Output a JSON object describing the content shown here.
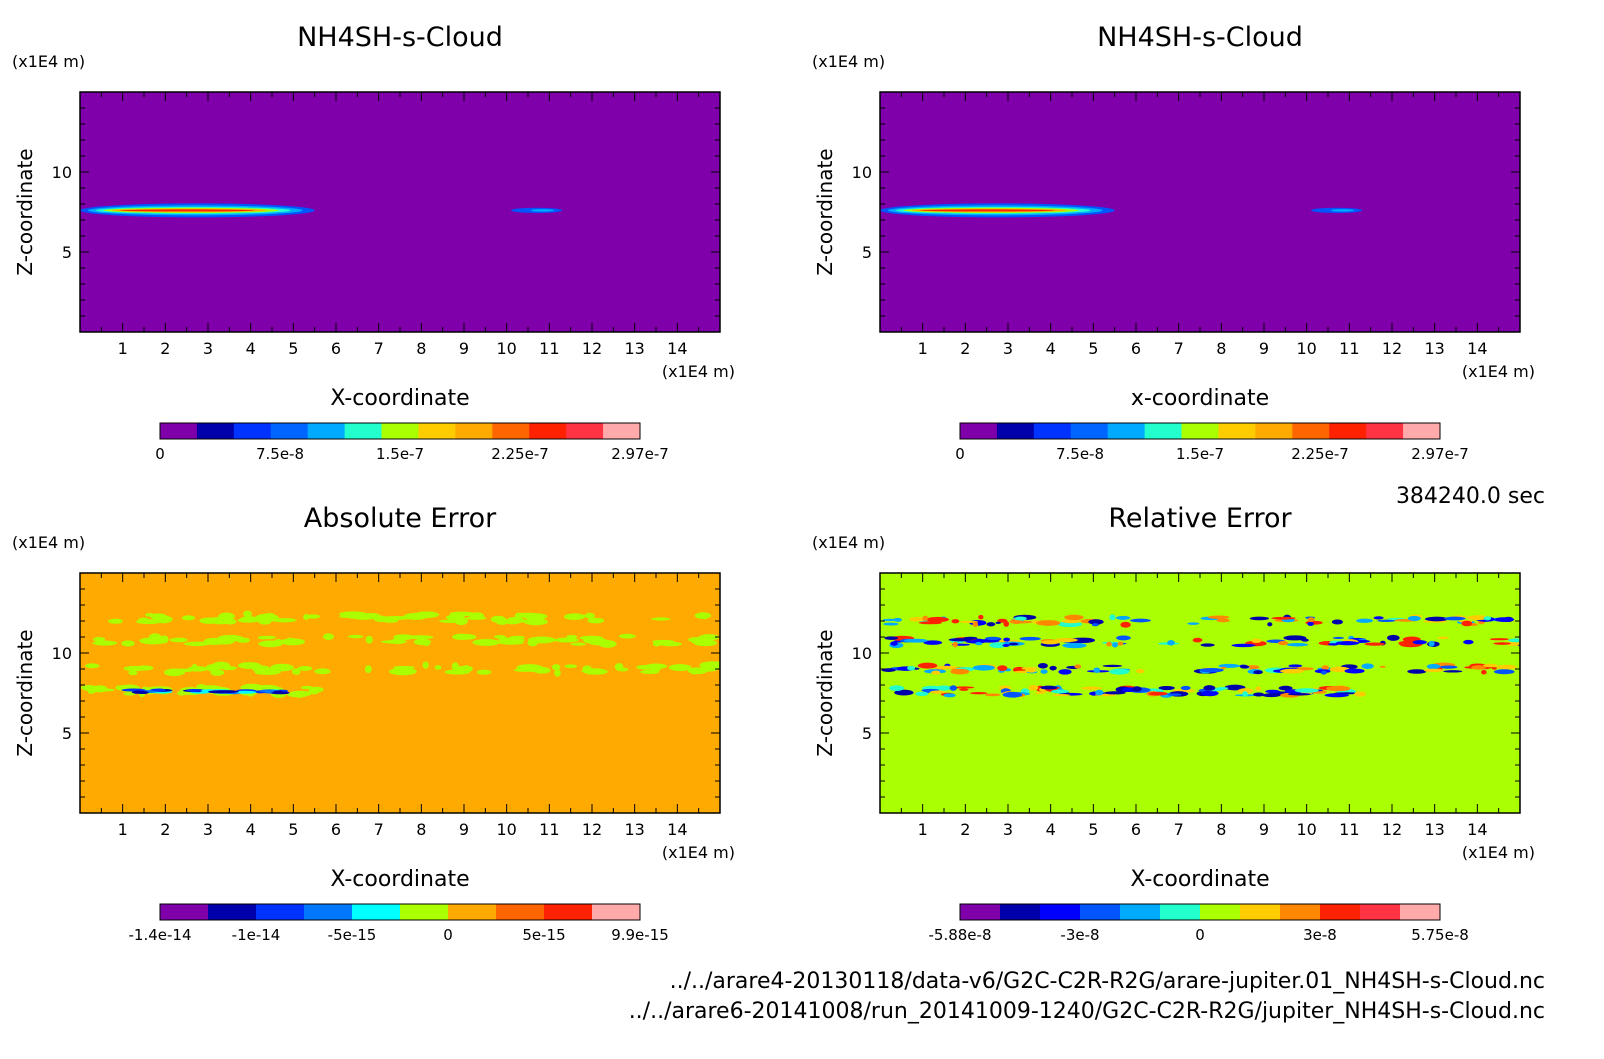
{
  "timestamp": "384240.0 sec",
  "files": [
    "../../arare4-20130118/data-v6/G2C-C2R-R2G/arare-jupiter.01_NH4SH-s-Cloud.nc",
    "../../arare6-20141008/run_20141009-1240/G2C-C2R-R2G/jupiter_NH4SH-s-Cloud.nc"
  ],
  "chart_data": [
    {
      "type": "heatmap",
      "title": "NH4SH-s-Cloud",
      "xlabel": "X-coordinate",
      "ylabel": "Z-coordinate",
      "x_unit": "(x1E4 m)",
      "y_unit": "(x1E4 m)",
      "xlim": [
        0,
        15
      ],
      "ylim": [
        0,
        15
      ],
      "x_ticks": [
        1,
        2,
        3,
        4,
        5,
        6,
        7,
        8,
        9,
        10,
        11,
        12,
        13,
        14
      ],
      "y_ticks": [
        5,
        10
      ],
      "background": "#7f00aa",
      "features": [
        {
          "x": [
            0,
            5.5
          ],
          "z": 7.6,
          "peak": 2.97e-07
        },
        {
          "x": [
            10.1,
            11.3
          ],
          "z": 7.6,
          "peak": 7.5e-08
        }
      ],
      "colorbar": {
        "colors": [
          "#7f00aa",
          "#0000aa",
          "#0033ff",
          "#0066ff",
          "#00aaff",
          "#22ffcc",
          "#aaff00",
          "#ffcc00",
          "#ffaa00",
          "#ff6600",
          "#ff2200",
          "#ff3344",
          "#ffaaaa"
        ],
        "labels": [
          "0",
          "7.5e-8",
          "1.5e-7",
          "2.25e-7",
          "2.97e-7"
        ]
      },
      "grid": false
    },
    {
      "type": "heatmap",
      "title": "NH4SH-s-Cloud",
      "xlabel": "x-coordinate",
      "ylabel": "Z-coordinate",
      "x_unit": "(x1E4 m)",
      "y_unit": "(x1E4 m)",
      "xlim": [
        0,
        15
      ],
      "ylim": [
        0,
        15
      ],
      "x_ticks": [
        1,
        2,
        3,
        4,
        5,
        6,
        7,
        8,
        9,
        10,
        11,
        12,
        13,
        14
      ],
      "y_ticks": [
        5,
        10
      ],
      "background": "#7f00aa",
      "features": [
        {
          "x": [
            0,
            5.5
          ],
          "z": 7.6,
          "peak": 2.97e-07
        },
        {
          "x": [
            10.1,
            11.3
          ],
          "z": 7.6,
          "peak": 7.5e-08
        }
      ],
      "colorbar": {
        "colors": [
          "#7f00aa",
          "#0000aa",
          "#0033ff",
          "#0066ff",
          "#00aaff",
          "#22ffcc",
          "#aaff00",
          "#ffcc00",
          "#ffaa00",
          "#ff6600",
          "#ff2200",
          "#ff3344",
          "#ffaaaa"
        ],
        "labels": [
          "0",
          "7.5e-8",
          "1.5e-7",
          "2.25e-7",
          "2.97e-7"
        ]
      },
      "grid": false
    },
    {
      "type": "heatmap",
      "title": "Absolute Error",
      "xlabel": "X-coordinate",
      "ylabel": "Z-coordinate",
      "x_unit": "(x1E4 m)",
      "y_unit": "(x1E4 m)",
      "xlim": [
        0,
        15
      ],
      "ylim": [
        0,
        15
      ],
      "x_ticks": [
        1,
        2,
        3,
        4,
        5,
        6,
        7,
        8,
        9,
        10,
        11,
        12,
        13,
        14
      ],
      "y_ticks": [
        5,
        10
      ],
      "background": "#ffaa00",
      "features": [
        {
          "x": [
            0.2,
            15
          ],
          "z": 12.2,
          "value": -1e-15
        },
        {
          "x": [
            0.2,
            15
          ],
          "z": 10.8,
          "value": -1e-15
        },
        {
          "x": [
            0.2,
            15
          ],
          "z": 9.0,
          "value": -1e-15
        },
        {
          "x": [
            0.2,
            5.8
          ],
          "z": 7.6,
          "value": -1.4e-14
        }
      ],
      "colorbar": {
        "colors": [
          "#7f00aa",
          "#0000aa",
          "#0033ff",
          "#0077ff",
          "#00ffff",
          "#aaff00",
          "#ffaa00",
          "#ff6600",
          "#ff2200",
          "#ffaaaa"
        ],
        "labels": [
          "-1.4e-14",
          "-1e-14",
          "-5e-15",
          "0",
          "5e-15",
          "9.9e-15"
        ]
      },
      "grid": false
    },
    {
      "type": "heatmap",
      "title": "Relative Error",
      "xlabel": "X-coordinate",
      "ylabel": "Z-coordinate",
      "x_unit": "(x1E4 m)",
      "y_unit": "(x1E4 m)",
      "xlim": [
        0,
        15
      ],
      "ylim": [
        0,
        15
      ],
      "x_ticks": [
        1,
        2,
        3,
        4,
        5,
        6,
        7,
        8,
        9,
        10,
        11,
        12,
        13,
        14
      ],
      "y_ticks": [
        5,
        10
      ],
      "background": "#aaff00",
      "features": [
        {
          "x": [
            0.2,
            15
          ],
          "z": 12.0,
          "value": -3e-08
        },
        {
          "x": [
            0.2,
            15
          ],
          "z": 10.7,
          "value": -3e-08
        },
        {
          "x": [
            0.2,
            15
          ],
          "z": 9.0,
          "value": -3e-08
        },
        {
          "x": [
            0.2,
            11.3
          ],
          "z": 7.6,
          "value": -5.88e-08
        }
      ],
      "colorbar": {
        "colors": [
          "#7f00aa",
          "#0000aa",
          "#0000ff",
          "#0055ff",
          "#00aaff",
          "#22ffcc",
          "#aaff00",
          "#ffcc00",
          "#ff8800",
          "#ff2200",
          "#ff3344",
          "#ffaaaa"
        ],
        "labels": [
          "-5.88e-8",
          "-3e-8",
          "0",
          "3e-8",
          "5.75e-8"
        ]
      },
      "grid": false
    }
  ]
}
